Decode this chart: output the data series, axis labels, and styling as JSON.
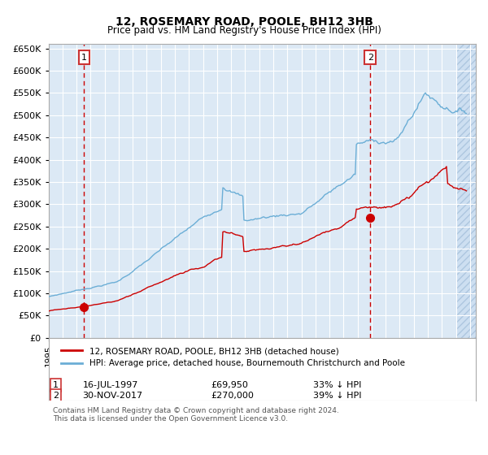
{
  "title": "12, ROSEMARY ROAD, POOLE, BH12 3HB",
  "subtitle": "Price paid vs. HM Land Registry's House Price Index (HPI)",
  "legend_line1": "12, ROSEMARY ROAD, POOLE, BH12 3HB (detached house)",
  "legend_line2": "HPI: Average price, detached house, Bournemouth Christchurch and Poole",
  "footnote": "Contains HM Land Registry data © Crown copyright and database right 2024.\nThis data is licensed under the Open Government Licence v3.0.",
  "sale1_date": "16-JUL-1997",
  "sale1_price": 69950,
  "sale1_pct": "33% ↓ HPI",
  "sale2_date": "30-NOV-2017",
  "sale2_price": 270000,
  "sale2_pct": "39% ↓ HPI",
  "hpi_color": "#6baed6",
  "price_color": "#cc0000",
  "marker_color": "#cc0000",
  "dashed_color": "#cc0000",
  "bg_color": "#dce9f5",
  "hatch_color": "#b0c8e0",
  "grid_color": "#ffffff",
  "ylim": [
    0,
    660000
  ],
  "ytick_step": 50000,
  "x_start_year": 1995,
  "x_end_year": 2025
}
